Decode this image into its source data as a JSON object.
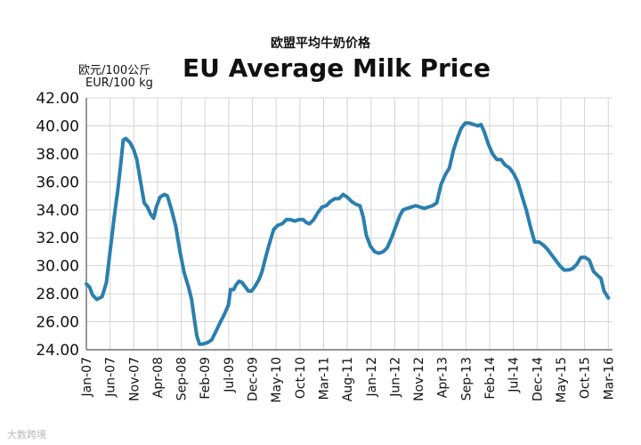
{
  "header": {
    "title_cn": "欧盟平均牛奶价格",
    "title_en": "EU Average Milk Price",
    "unit_cn": "欧元/100公斤",
    "unit_en": "EUR/100 kg"
  },
  "colors": {
    "line": "#2a7fae",
    "grid": "#d4d4d4",
    "axis": "#555555",
    "text": "#111111"
  },
  "watermark": "大数跨境",
  "chart_data": {
    "type": "line",
    "title": "EU Average Milk Price",
    "subtitle": "欧盟平均牛奶价格",
    "ylabel": "欧元/100公斤 EUR/100 kg",
    "xlabel": "",
    "ylim": [
      24,
      42
    ],
    "yticks": [
      "24.00",
      "26.00",
      "28.00",
      "30.00",
      "32.00",
      "34.00",
      "36.00",
      "38.00",
      "40.00",
      "42.00"
    ],
    "xticks": [
      "Jan-07",
      "Jun-07",
      "Nov-07",
      "Apr-08",
      "Sep-08",
      "Feb-09",
      "Jul-09",
      "Dec-09",
      "May-10",
      "Oct-10",
      "Mar-11",
      "Aug-11",
      "Jan-12",
      "Jun-12",
      "Nov-12",
      "Apr-13",
      "Sep-13",
      "Feb-14",
      "Jul-14",
      "Dec-14",
      "May-15",
      "Oct-15",
      "Mar-16"
    ],
    "grid": true,
    "series": [
      {
        "name": "EU Average Milk Price",
        "points": [
          [
            0,
            28.7
          ],
          [
            0.6,
            28.5
          ],
          [
            1.2,
            27.9
          ],
          [
            2,
            27.6
          ],
          [
            3,
            27.8
          ],
          [
            3.8,
            28.8
          ],
          [
            4.5,
            31.0
          ],
          [
            5.3,
            33.5
          ],
          [
            6,
            35.5
          ],
          [
            6.6,
            37.5
          ],
          [
            7,
            39.0
          ],
          [
            7.5,
            39.1
          ],
          [
            8.3,
            38.8
          ],
          [
            9,
            38.3
          ],
          [
            9.6,
            37.6
          ],
          [
            10.3,
            36.0
          ],
          [
            11,
            34.5
          ],
          [
            11.6,
            34.2
          ],
          [
            12.2,
            33.7
          ],
          [
            12.8,
            33.4
          ],
          [
            13.3,
            34.2
          ],
          [
            14,
            34.9
          ],
          [
            14.8,
            35.1
          ],
          [
            15.4,
            35.0
          ],
          [
            16.2,
            34.0
          ],
          [
            17,
            32.8
          ],
          [
            17.8,
            31.0
          ],
          [
            18.6,
            29.5
          ],
          [
            19.4,
            28.5
          ],
          [
            20,
            27.6
          ],
          [
            20.4,
            26.5
          ],
          [
            21,
            25.0
          ],
          [
            21.5,
            24.4
          ],
          [
            22,
            24.4
          ],
          [
            23,
            24.5
          ],
          [
            23.8,
            24.7
          ],
          [
            24.6,
            25.3
          ],
          [
            25.5,
            26.0
          ],
          [
            26.2,
            26.5
          ],
          [
            27,
            27.2
          ],
          [
            27.4,
            28.3
          ],
          [
            28,
            28.3
          ],
          [
            28.4,
            28.6
          ],
          [
            29,
            28.9
          ],
          [
            29.6,
            28.8
          ],
          [
            30.2,
            28.5
          ],
          [
            30.8,
            28.2
          ],
          [
            31.4,
            28.2
          ],
          [
            32,
            28.5
          ],
          [
            32.8,
            29.0
          ],
          [
            33.4,
            29.6
          ],
          [
            34,
            30.5
          ],
          [
            34.8,
            31.6
          ],
          [
            35.6,
            32.6
          ],
          [
            36.4,
            32.9
          ],
          [
            37.2,
            33.0
          ],
          [
            38,
            33.3
          ],
          [
            38.8,
            33.3
          ],
          [
            39.6,
            33.2
          ],
          [
            40.4,
            33.3
          ],
          [
            41.2,
            33.3
          ],
          [
            41.8,
            33.1
          ],
          [
            42.4,
            33.0
          ],
          [
            43.2,
            33.3
          ],
          [
            44,
            33.8
          ],
          [
            44.8,
            34.2
          ],
          [
            45.6,
            34.3
          ],
          [
            46.4,
            34.6
          ],
          [
            47.2,
            34.8
          ],
          [
            48,
            34.8
          ],
          [
            48.8,
            35.1
          ],
          [
            49.6,
            34.9
          ],
          [
            50.4,
            34.6
          ],
          [
            51.2,
            34.4
          ],
          [
            52,
            34.3
          ],
          [
            52.6,
            33.5
          ],
          [
            53.2,
            32.2
          ],
          [
            54,
            31.4
          ],
          [
            54.8,
            31.0
          ],
          [
            55.6,
            30.9
          ],
          [
            56.4,
            31.0
          ],
          [
            57.2,
            31.3
          ],
          [
            58,
            32.0
          ],
          [
            58.8,
            32.8
          ],
          [
            59.6,
            33.6
          ],
          [
            60.2,
            34.0
          ],
          [
            61,
            34.1
          ],
          [
            61.8,
            34.2
          ],
          [
            62.6,
            34.3
          ],
          [
            63.4,
            34.2
          ],
          [
            64.2,
            34.1
          ],
          [
            65,
            34.2
          ],
          [
            65.8,
            34.3
          ],
          [
            66.6,
            34.5
          ],
          [
            67.4,
            35.8
          ],
          [
            68.2,
            36.5
          ],
          [
            69,
            37.0
          ],
          [
            69.8,
            38.3
          ],
          [
            70.6,
            39.2
          ],
          [
            71.2,
            39.8
          ],
          [
            72,
            40.2
          ],
          [
            72.8,
            40.2
          ],
          [
            73.6,
            40.1
          ],
          [
            74.4,
            40.0
          ],
          [
            75,
            40.1
          ],
          [
            75.6,
            39.6
          ],
          [
            76.4,
            38.7
          ],
          [
            77.2,
            38.0
          ],
          [
            78,
            37.6
          ],
          [
            78.8,
            37.6
          ],
          [
            79.6,
            37.2
          ],
          [
            80.4,
            37.0
          ],
          [
            81.2,
            36.6
          ],
          [
            82,
            36.0
          ],
          [
            82.8,
            35.0
          ],
          [
            83.6,
            34.0
          ],
          [
            84.4,
            32.8
          ],
          [
            85.2,
            31.7
          ],
          [
            86,
            31.7
          ],
          [
            86.8,
            31.5
          ],
          [
            87.6,
            31.2
          ],
          [
            88.4,
            30.8
          ],
          [
            89.2,
            30.4
          ],
          [
            90,
            30.0
          ],
          [
            90.8,
            29.7
          ],
          [
            91.6,
            29.7
          ],
          [
            92.4,
            29.8
          ],
          [
            93.2,
            30.1
          ],
          [
            94,
            30.6
          ],
          [
            94.8,
            30.6
          ],
          [
            95.6,
            30.4
          ],
          [
            96.4,
            29.6
          ],
          [
            97.2,
            29.3
          ],
          [
            97.8,
            29.1
          ],
          [
            98.4,
            28.2
          ],
          [
            99.2,
            27.7
          ]
        ]
      }
    ]
  }
}
